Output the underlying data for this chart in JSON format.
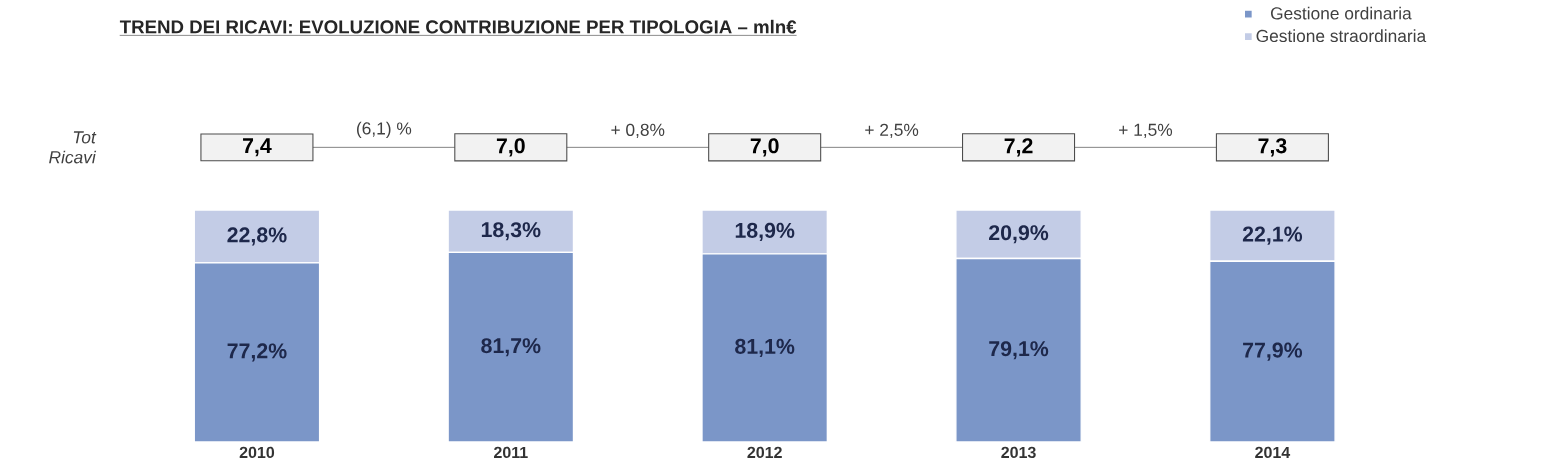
{
  "chart_data": {
    "type": "bar",
    "stacked": true,
    "title": "TREND DEI RICAVI: EVOLUZIONE CONTRIBUZIONE PER TIPOLOGIA – mln€",
    "categories": [
      "2010",
      "2011",
      "2012",
      "2013",
      "2014"
    ],
    "series": [
      {
        "name": "Gestione ordinaria",
        "color": "#7b96c8",
        "values": [
          77.2,
          81.7,
          81.1,
          79.1,
          77.9
        ],
        "value_labels": [
          "77,2%",
          "81,7%",
          "81,1%",
          "79,1%",
          "77,9%"
        ]
      },
      {
        "name": "Gestione straordinaria",
        "color": "#c3cce6",
        "values": [
          22.8,
          18.3,
          18.9,
          20.9,
          22.1
        ],
        "value_labels": [
          "22,8%",
          "18,3%",
          "18,9%",
          "20,9%",
          "22,1%"
        ]
      }
    ],
    "annotations": [
      "Tot Ricavi",
      "7,4",
      "(6,1) %",
      "7,0",
      "+ 0,8%",
      "7,0",
      "+ 2,5%",
      "7,2",
      "+ 1,5%",
      "7,3"
    ],
    "legend": "top right"
  }
}
